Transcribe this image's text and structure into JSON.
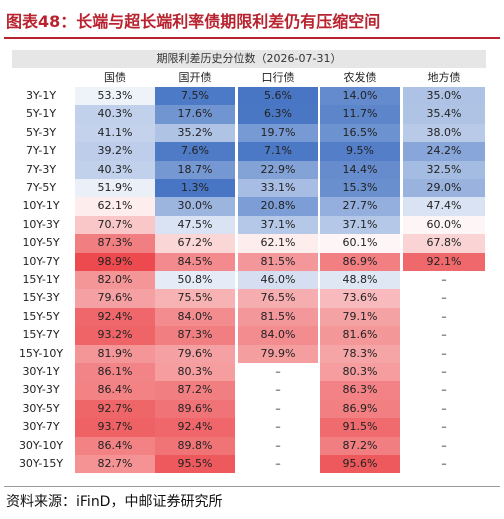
{
  "header": {
    "title": "图表48：长端与超长端利率债期限利差仍有压缩空间"
  },
  "table": {
    "caption": "期限利差历史分位数（2026-07-31）",
    "columns": [
      "国债",
      "国开债",
      "口行债",
      "农发债",
      "地方债"
    ],
    "rows": [
      [
        "3Y-1Y",
        "53.3%",
        "7.5%",
        "5.6%",
        "14.0%",
        "35.0%"
      ],
      [
        "5Y-1Y",
        "40.3%",
        "17.6%",
        "6.3%",
        "11.7%",
        "35.4%"
      ],
      [
        "5Y-3Y",
        "41.1%",
        "35.2%",
        "19.7%",
        "16.5%",
        "38.0%"
      ],
      [
        "7Y-1Y",
        "39.2%",
        "7.6%",
        "7.1%",
        "9.5%",
        "24.2%"
      ],
      [
        "7Y-3Y",
        "40.3%",
        "18.7%",
        "22.9%",
        "14.4%",
        "32.5%"
      ],
      [
        "7Y-5Y",
        "51.9%",
        "1.3%",
        "33.1%",
        "15.3%",
        "29.0%"
      ],
      [
        "10Y-1Y",
        "62.1%",
        "30.0%",
        "20.8%",
        "27.7%",
        "47.4%"
      ],
      [
        "10Y-3Y",
        "70.7%",
        "47.5%",
        "37.1%",
        "37.1%",
        "60.0%"
      ],
      [
        "10Y-5Y",
        "87.3%",
        "67.2%",
        "62.1%",
        "60.1%",
        "67.8%"
      ],
      [
        "10Y-7Y",
        "98.9%",
        "84.5%",
        "81.5%",
        "86.9%",
        "92.1%"
      ],
      [
        "15Y-1Y",
        "82.0%",
        "50.8%",
        "46.0%",
        "48.8%",
        "–"
      ],
      [
        "15Y-3Y",
        "79.6%",
        "75.5%",
        "76.5%",
        "73.6%",
        "–"
      ],
      [
        "15Y-5Y",
        "92.4%",
        "84.0%",
        "81.5%",
        "79.1%",
        "–"
      ],
      [
        "15Y-7Y",
        "93.2%",
        "87.3%",
        "84.0%",
        "81.6%",
        "–"
      ],
      [
        "15Y-10Y",
        "81.9%",
        "79.6%",
        "79.9%",
        "78.3%",
        "–"
      ],
      [
        "30Y-1Y",
        "86.1%",
        "80.3%",
        "–",
        "80.3%",
        "–"
      ],
      [
        "30Y-3Y",
        "86.4%",
        "87.2%",
        "–",
        "86.3%",
        "–"
      ],
      [
        "30Y-5Y",
        "92.7%",
        "89.6%",
        "–",
        "86.9%",
        "–"
      ],
      [
        "30Y-7Y",
        "93.7%",
        "92.4%",
        "–",
        "91.5%",
        "–"
      ],
      [
        "30Y-10Y",
        "86.4%",
        "89.8%",
        "–",
        "87.2%",
        "–"
      ],
      [
        "30Y-15Y",
        "82.7%",
        "95.5%",
        "–",
        "95.6%",
        "–"
      ]
    ]
  },
  "footer": {
    "source": "资料来源：iFinD，中邮证券研究所"
  }
}
